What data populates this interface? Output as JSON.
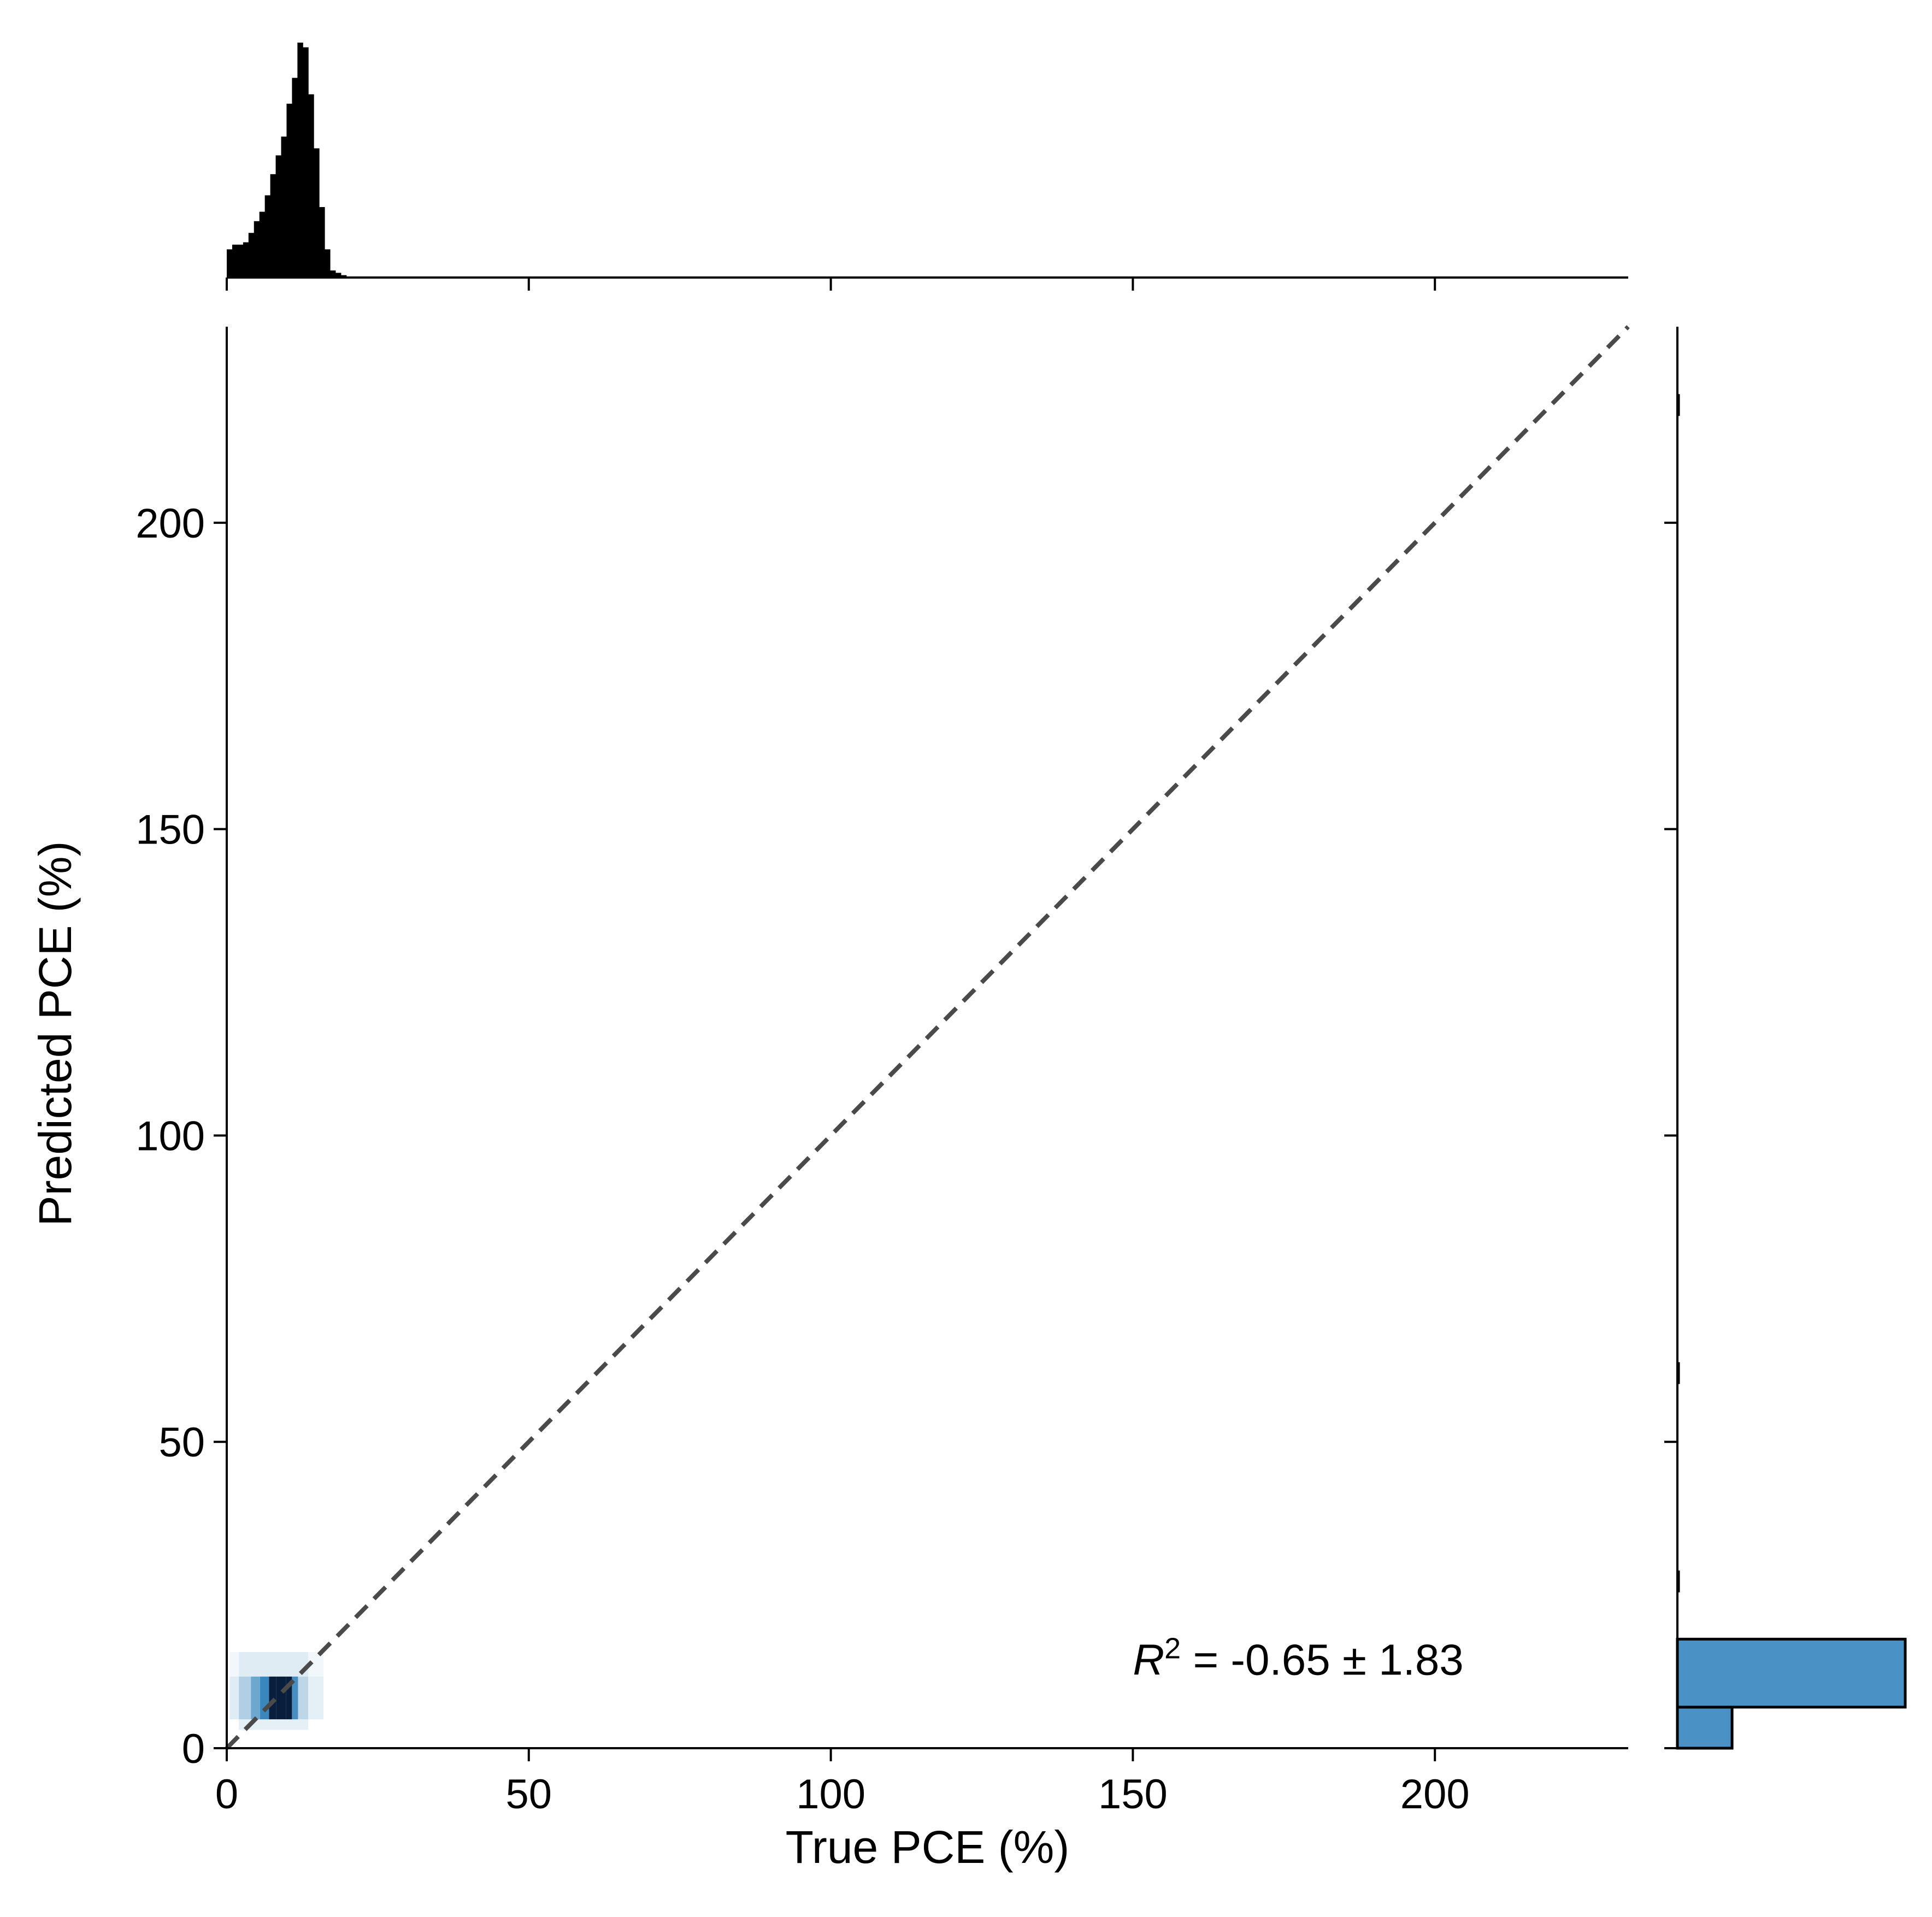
{
  "chart_data": {
    "type": "scatter",
    "subtype": "joint-plot-density",
    "title": "",
    "xlabel": "True PCE (%)",
    "ylabel": "Predicted PCE (%)",
    "xlim": [
      0,
      232
    ],
    "ylim": [
      0,
      232
    ],
    "xticks": [
      0,
      50,
      100,
      150,
      200
    ],
    "yticks": [
      0,
      50,
      100,
      150,
      200
    ],
    "grid": false,
    "identity_line": {
      "style": "dashed",
      "color": "#4a4a4a",
      "from": [
        0,
        0
      ],
      "to": [
        232,
        232
      ]
    },
    "annotation": {
      "text_base": "R",
      "text_sup": "2",
      "text_rest": " = -0.65 ± 1.83",
      "x": 150,
      "y": 14.5
    },
    "density": {
      "color": "#1f77b4",
      "cells": [
        {
          "x0": 2.0,
          "x1": 4.0,
          "y0": 4.7,
          "y1": 11.7,
          "w": 0.3
        },
        {
          "x0": 4.0,
          "x1": 5.5,
          "y0": 4.7,
          "y1": 11.7,
          "w": 0.55
        },
        {
          "x0": 5.5,
          "x1": 7.0,
          "y0": 4.7,
          "y1": 11.7,
          "w": 0.75
        },
        {
          "x0": 7.0,
          "x1": 8.2,
          "y0": 4.7,
          "y1": 11.7,
          "w": 0.9
        },
        {
          "x0": 8.2,
          "x1": 9.0,
          "y0": 4.7,
          "y1": 11.7,
          "w": 1.0
        },
        {
          "x0": 9.0,
          "x1": 9.8,
          "y0": 4.7,
          "y1": 11.7,
          "w": 0.92
        },
        {
          "x0": 9.8,
          "x1": 10.8,
          "y0": 4.7,
          "y1": 11.7,
          "w": 1.0
        },
        {
          "x0": 10.8,
          "x1": 11.8,
          "y0": 4.7,
          "y1": 11.7,
          "w": 0.7
        },
        {
          "x0": 11.8,
          "x1": 13.5,
          "y0": 4.7,
          "y1": 11.7,
          "w": 0.25
        },
        {
          "x0": 13.5,
          "x1": 16.0,
          "y0": 4.7,
          "y1": 11.7,
          "w": 0.1
        },
        {
          "x0": 0.5,
          "x1": 2.0,
          "y0": 4.7,
          "y1": 11.7,
          "w": 0.12
        },
        {
          "x0": 2.0,
          "x1": 13.5,
          "y0": 11.7,
          "y1": 15.7,
          "w": 0.12
        },
        {
          "x0": 13.5,
          "x1": 16.0,
          "y0": 11.7,
          "y1": 15.7,
          "w": 0.05
        },
        {
          "x0": 0.5,
          "x1": 2.0,
          "y0": 11.7,
          "y1": 15.7,
          "w": 0.05
        },
        {
          "x0": 2.0,
          "x1": 13.5,
          "y0": 3.0,
          "y1": 4.7,
          "w": 0.1
        }
      ]
    },
    "top_histogram": {
      "color": "#000000",
      "bin_width": 0.9,
      "x_start": 0.0,
      "counts": [
        12,
        14,
        14,
        15,
        19,
        24,
        28,
        35,
        44,
        52,
        60,
        74,
        85,
        100,
        98,
        78,
        55,
        30,
        12,
        3,
        2,
        1
      ]
    },
    "right_histogram": {
      "color": "#4a92c6",
      "edgecolor": "#000000",
      "bins": [
        {
          "y0": 0.0,
          "y1": 6.7,
          "count": 0.24
        },
        {
          "y0": 6.7,
          "y1": 17.8,
          "count": 1.0
        }
      ],
      "sliver_heights": [
        221,
        63,
        29
      ]
    }
  }
}
